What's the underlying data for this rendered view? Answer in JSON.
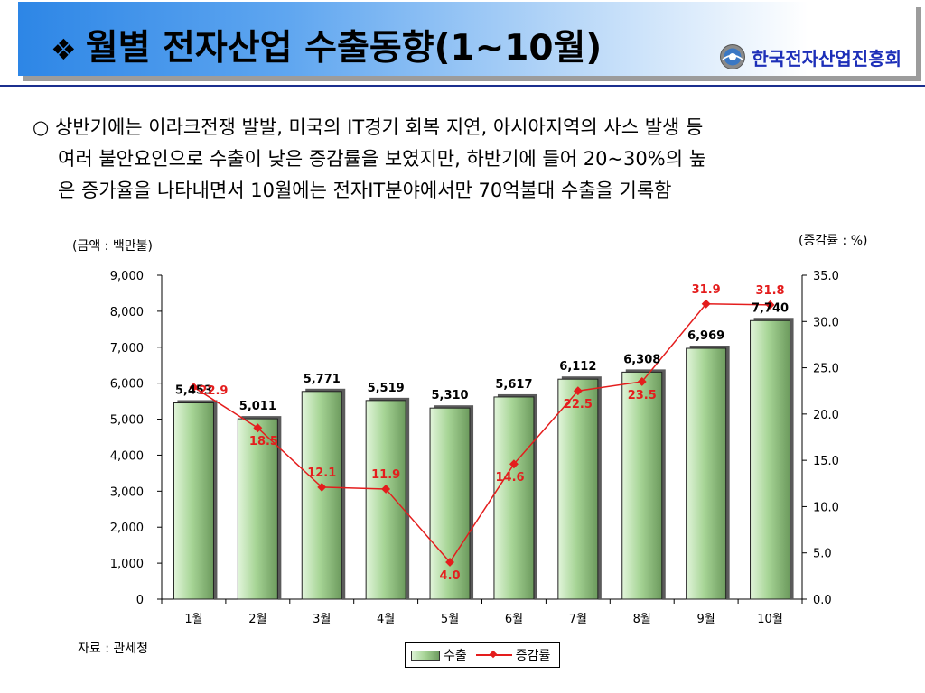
{
  "header": {
    "bullet": "❖",
    "title": "월별 전자산업 수출동향(1~10월)",
    "org": "한국전자산업진흥회"
  },
  "summary": {
    "lines": [
      "○ 상반기에는 이라크전쟁 발발, 미국의 IT경기 회복 지연, 아시아지역의 사스 발생 등",
      "여러 불안요인으로 수출이 낮은 증감률을 보였지만, 하반기에 들어 20~30%의 높",
      "은 증가율을 나타내면서 10월에는 전자IT분야에서만 70억불대 수출을 기록함"
    ]
  },
  "units": {
    "left": "(금액 : 백만불)",
    "right": "(증감률 : %)"
  },
  "source": "자료 : 관세청",
  "legend": {
    "bar": "수출",
    "line": "증감률"
  },
  "colors": {
    "bar": "#9fd08c",
    "line": "#e41d1d",
    "rule": "#1b2f8e",
    "org": "#1d2fb8"
  },
  "chart_data": {
    "type": "bar",
    "categories": [
      "1월",
      "2월",
      "3월",
      "4월",
      "5월",
      "6월",
      "7월",
      "8월",
      "9월",
      "10월"
    ],
    "series": [
      {
        "name": "수출",
        "axis": "left",
        "type": "bar",
        "values": [
          5453,
          5011,
          5771,
          5519,
          5310,
          5617,
          6112,
          6308,
          6969,
          7740
        ],
        "labels": [
          "5,453",
          "5,011",
          "5,771",
          "5,519",
          "5,310",
          "5,617",
          "6,112",
          "6,308",
          "6,969",
          "7,740"
        ]
      },
      {
        "name": "증감률",
        "axis": "right",
        "type": "line",
        "values": [
          22.9,
          18.5,
          12.1,
          11.9,
          4.0,
          14.6,
          22.5,
          23.5,
          31.9,
          31.8
        ],
        "labels": [
          "22.9",
          "18.5",
          "12.1",
          "11.9",
          "4.0",
          "14.6",
          "22.5",
          "23.5",
          "31.9",
          "31.8"
        ]
      }
    ],
    "y_left": {
      "min": 0,
      "max": 9000,
      "ticks": [
        "0",
        "1,000",
        "2,000",
        "3,000",
        "4,000",
        "5,000",
        "6,000",
        "7,000",
        "8,000",
        "9,000"
      ]
    },
    "y_right": {
      "min": 0,
      "max": 35,
      "ticks": [
        "0.0",
        "5.0",
        "10.0",
        "15.0",
        "20.0",
        "25.0",
        "30.0",
        "35.0"
      ]
    },
    "grid": false,
    "legend_position": "bottom-right"
  }
}
